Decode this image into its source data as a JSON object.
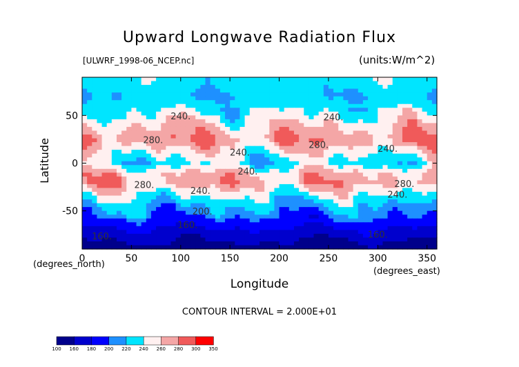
{
  "chart_data": {
    "type": "heatmap",
    "title": "Upward Longwave Radiation Flux",
    "subtitle_left": "[ULWRF_1998-06_NCEP.nc]",
    "subtitle_right": "(units:W/m^2)",
    "xlabel": "Longitude",
    "ylabel": "Latitude",
    "x_unit_label": "(degrees_north)",
    "y_unit_label": "(degrees_east)",
    "xlim": [
      0,
      360
    ],
    "ylim": [
      -90,
      90
    ],
    "x_ticks": [
      0,
      50,
      100,
      150,
      200,
      250,
      300,
      350
    ],
    "y_ticks": [
      -50,
      0,
      50
    ],
    "contour_interval_text": "CONTOUR INTERVAL = 2.000E+01",
    "levels": [
      100,
      160,
      180,
      200,
      220,
      240,
      260,
      280,
      300,
      350
    ],
    "colors": [
      "#00008b",
      "#0000cd",
      "#0000ff",
      "#1e90ff",
      "#00e5ff",
      "#fff0f0",
      "#f4a6a6",
      "#f05a5a",
      "#ff0000"
    ],
    "contour_labels": [
      {
        "text": "240.",
        "lon": 100,
        "lat": 46
      },
      {
        "text": "240.",
        "lon": 255,
        "lat": 45
      },
      {
        "text": "280.",
        "lon": 72,
        "lat": 21
      },
      {
        "text": "280.",
        "lon": 240,
        "lat": 16
      },
      {
        "text": "240.",
        "lon": 160,
        "lat": 8
      },
      {
        "text": "240.",
        "lon": 310,
        "lat": 12
      },
      {
        "text": "240.",
        "lon": 168,
        "lat": -12
      },
      {
        "text": "280.",
        "lon": 63,
        "lat": -26
      },
      {
        "text": "240.",
        "lon": 120,
        "lat": -32
      },
      {
        "text": "280.",
        "lon": 327,
        "lat": -25
      },
      {
        "text": "240.",
        "lon": 320,
        "lat": -36
      },
      {
        "text": "200.",
        "lon": 122,
        "lat": -54
      },
      {
        "text": "160.",
        "lon": 107,
        "lat": -68
      },
      {
        "text": "160.",
        "lon": 20,
        "lat": -80
      },
      {
        "text": "160.",
        "lon": 300,
        "lat": -78
      }
    ],
    "bands": [
      {
        "lat": 85,
        "value": 232
      },
      {
        "lat": 70,
        "value": 222
      },
      {
        "lat": 55,
        "value": 236
      },
      {
        "lat": 40,
        "value": 258
      },
      {
        "lat": 25,
        "value": 276
      },
      {
        "lat": 10,
        "value": 248
      },
      {
        "lat": 0,
        "value": 232
      },
      {
        "lat": -10,
        "value": 262
      },
      {
        "lat": -20,
        "value": 270
      },
      {
        "lat": -32,
        "value": 244
      },
      {
        "lat": -45,
        "value": 218
      },
      {
        "lat": -55,
        "value": 205
      },
      {
        "lat": -65,
        "value": 185
      },
      {
        "lat": -78,
        "value": 165
      },
      {
        "lat": -88,
        "value": 150
      }
    ]
  }
}
